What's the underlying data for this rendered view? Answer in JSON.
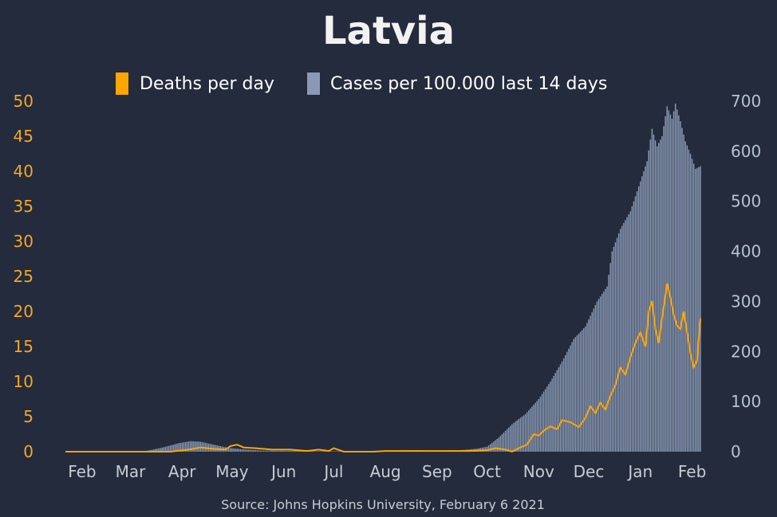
{
  "title": "Latvia",
  "source": "Source: Johns Hopkins University, February 6 2021",
  "colors": {
    "background": "#232b3c",
    "deaths": "#ffa500",
    "cases": "#8a9ab5",
    "left_axis": "#f5a623",
    "right_axis": "#b7c2d4",
    "x_axis": "#c8ccd4"
  },
  "chart_data": {
    "type": "bar",
    "legend_placement": "top",
    "x_range": [
      "2020-01-22",
      "2021-02-06"
    ],
    "x_ticks": [
      "Feb",
      "Mar",
      "Apr",
      "May",
      "Jun",
      "Jul",
      "Aug",
      "Sep",
      "Oct",
      "Nov",
      "Dec",
      "Jan",
      "Feb"
    ],
    "y_left": {
      "range": [
        0,
        50
      ],
      "ticks": [
        "0",
        "5",
        "10",
        "15",
        "20",
        "25",
        "30",
        "35",
        "40",
        "45",
        "50"
      ]
    },
    "y_right": {
      "range": [
        0,
        700
      ],
      "ticks": [
        "0",
        "100",
        "200",
        "300",
        "400",
        "500",
        "600",
        "700"
      ]
    },
    "series": [
      {
        "name": "Deaths per day",
        "kind": "line",
        "axis": "left",
        "points": [
          [
            "2020-01-22",
            0
          ],
          [
            "2020-03-25",
            0
          ],
          [
            "2020-04-05",
            0.3
          ],
          [
            "2020-04-12",
            0.6
          ],
          [
            "2020-04-20",
            0.4
          ],
          [
            "2020-04-27",
            0.3
          ],
          [
            "2020-04-30",
            0.8
          ],
          [
            "2020-05-04",
            1.0
          ],
          [
            "2020-05-08",
            0.6
          ],
          [
            "2020-05-15",
            0.5
          ],
          [
            "2020-05-25",
            0.3
          ],
          [
            "2020-06-05",
            0.3
          ],
          [
            "2020-06-15",
            0.1
          ],
          [
            "2020-06-22",
            0.3
          ],
          [
            "2020-06-28",
            0.1
          ],
          [
            "2020-07-01",
            0.5
          ],
          [
            "2020-07-07",
            0
          ],
          [
            "2020-07-25",
            0
          ],
          [
            "2020-08-01",
            0.1
          ],
          [
            "2020-08-15",
            0.1
          ],
          [
            "2020-09-01",
            0.1
          ],
          [
            "2020-09-20",
            0.1
          ],
          [
            "2020-10-01",
            0.2
          ],
          [
            "2020-10-06",
            0.5
          ],
          [
            "2020-10-12",
            0.3
          ],
          [
            "2020-10-16",
            0
          ],
          [
            "2020-10-20",
            0.5
          ],
          [
            "2020-10-25",
            1.0
          ],
          [
            "2020-10-29",
            2.5
          ],
          [
            "2020-11-01",
            2.3
          ],
          [
            "2020-11-04",
            3.0
          ],
          [
            "2020-11-08",
            3.6
          ],
          [
            "2020-11-12",
            3.2
          ],
          [
            "2020-11-15",
            4.5
          ],
          [
            "2020-11-20",
            4.2
          ],
          [
            "2020-11-25",
            3.5
          ],
          [
            "2020-11-29",
            4.8
          ],
          [
            "2020-12-02",
            6.5
          ],
          [
            "2020-12-05",
            5.5
          ],
          [
            "2020-12-08",
            7.0
          ],
          [
            "2020-12-11",
            6.0
          ],
          [
            "2020-12-14",
            8.0
          ],
          [
            "2020-12-17",
            9.5
          ],
          [
            "2020-12-20",
            12.0
          ],
          [
            "2020-12-23",
            11.0
          ],
          [
            "2020-12-26",
            13.5
          ],
          [
            "2020-12-29",
            15.5
          ],
          [
            "2021-01-01",
            17.0
          ],
          [
            "2021-01-04",
            15.0
          ],
          [
            "2021-01-06",
            20.0
          ],
          [
            "2021-01-08",
            21.5
          ],
          [
            "2021-01-10",
            17.5
          ],
          [
            "2021-01-12",
            15.5
          ],
          [
            "2021-01-14",
            19.0
          ],
          [
            "2021-01-17",
            24.0
          ],
          [
            "2021-01-19",
            22.0
          ],
          [
            "2021-01-21",
            19.5
          ],
          [
            "2021-01-23",
            18.0
          ],
          [
            "2021-01-25",
            17.5
          ],
          [
            "2021-01-27",
            20.0
          ],
          [
            "2021-01-29",
            17.0
          ],
          [
            "2021-01-31",
            14.0
          ],
          [
            "2021-02-02",
            12.0
          ],
          [
            "2021-02-04",
            13.0
          ],
          [
            "2021-02-06",
            19.0
          ]
        ]
      },
      {
        "name": "Cases per 100.000 last 14 days",
        "kind": "bar",
        "axis": "right",
        "points": [
          [
            "2020-01-22",
            0
          ],
          [
            "2020-03-08",
            0
          ],
          [
            "2020-03-20",
            8
          ],
          [
            "2020-03-30",
            17
          ],
          [
            "2020-04-06",
            21
          ],
          [
            "2020-04-12",
            20
          ],
          [
            "2020-04-20",
            14
          ],
          [
            "2020-04-30",
            7
          ],
          [
            "2020-05-10",
            4
          ],
          [
            "2020-05-20",
            2
          ],
          [
            "2020-06-01",
            2
          ],
          [
            "2020-06-20",
            1
          ],
          [
            "2020-07-10",
            1
          ],
          [
            "2020-08-01",
            2
          ],
          [
            "2020-08-20",
            3
          ],
          [
            "2020-09-01",
            2
          ],
          [
            "2020-09-15",
            3
          ],
          [
            "2020-09-25",
            6
          ],
          [
            "2020-10-01",
            10
          ],
          [
            "2020-10-08",
            28
          ],
          [
            "2020-10-16",
            55
          ],
          [
            "2020-10-24",
            75
          ],
          [
            "2020-11-01",
            105
          ],
          [
            "2020-11-08",
            140
          ],
          [
            "2020-11-15",
            180
          ],
          [
            "2020-11-22",
            225
          ],
          [
            "2020-11-29",
            250
          ],
          [
            "2020-12-06",
            300
          ],
          [
            "2020-12-12",
            330
          ],
          [
            "2020-12-15",
            400
          ],
          [
            "2020-12-20",
            445
          ],
          [
            "2020-12-26",
            480
          ],
          [
            "2021-01-01",
            540
          ],
          [
            "2021-01-05",
            580
          ],
          [
            "2021-01-08",
            645
          ],
          [
            "2021-01-11",
            610
          ],
          [
            "2021-01-14",
            630
          ],
          [
            "2021-01-17",
            690
          ],
          [
            "2021-01-20",
            665
          ],
          [
            "2021-01-22",
            695
          ],
          [
            "2021-01-25",
            660
          ],
          [
            "2021-01-28",
            620
          ],
          [
            "2021-01-31",
            595
          ],
          [
            "2021-02-03",
            565
          ],
          [
            "2021-02-06",
            570
          ]
        ]
      }
    ]
  }
}
